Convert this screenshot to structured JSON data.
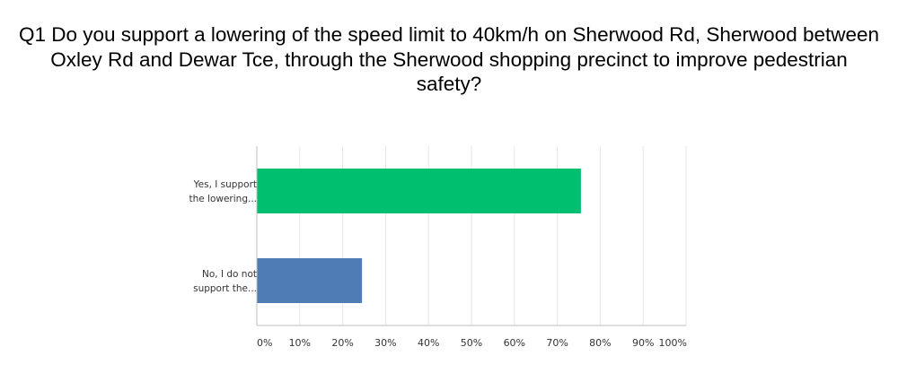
{
  "chart_data": {
    "type": "bar",
    "orientation": "horizontal",
    "title": "Q1 Do you support a lowering of the speed limit to 40km/h on Sherwood Rd, Sherwood between Oxley Rd and Dewar Tce, through the Sherwood shopping precinct to improve pedestrian safety?",
    "categories": [
      [
        "Yes, I support",
        "the lowering..."
      ],
      [
        "No, I do not",
        "support the..."
      ]
    ],
    "values": [
      75.5,
      24.5
    ],
    "colors": [
      "#00bf6f",
      "#507cb6"
    ],
    "xlim": [
      0,
      100
    ],
    "xticks": [
      0,
      10,
      20,
      30,
      40,
      50,
      60,
      70,
      80,
      90,
      100
    ],
    "xtick_labels": [
      "0%",
      "10%",
      "20%",
      "30%",
      "40%",
      "50%",
      "60%",
      "70%",
      "80%",
      "90%",
      "100%"
    ],
    "grid": true,
    "legend": "none"
  }
}
